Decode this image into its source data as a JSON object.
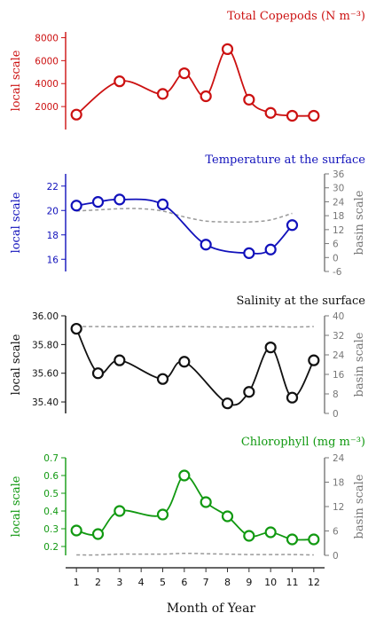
{
  "chart_data": [
    {
      "type": "line",
      "title": "Total Copepods (N m⁻³)",
      "color": "#cc1111",
      "ylabel": "local scale",
      "ylim": [
        0,
        8500
      ],
      "ticks": [
        2000,
        4000,
        6000,
        8000
      ],
      "tick_labels": [
        "2000",
        "4000",
        "6000",
        "8000"
      ],
      "x": [
        1,
        3,
        5,
        6,
        7,
        8,
        9,
        10,
        11,
        12
      ],
      "series": [
        {
          "values": [
            1300,
            4200,
            3100,
            4900,
            2900,
            7000,
            2600,
            1450,
            1200,
            1200
          ]
        }
      ]
    },
    {
      "type": "line",
      "title": "Temperature at the surface",
      "color": "#1111bb",
      "ylabel": "local scale",
      "ylim": [
        15,
        23
      ],
      "ticks": [
        16,
        18,
        20,
        22
      ],
      "tick_labels": [
        "16",
        "18",
        "20",
        "22"
      ],
      "x": [
        1,
        2,
        3,
        5,
        7,
        9,
        10,
        11
      ],
      "series": [
        {
          "values": [
            20.4,
            20.7,
            20.9,
            20.5,
            17.2,
            16.5,
            16.8,
            18.8
          ]
        }
      ],
      "secondary_axis": {
        "ylabel": "basin scale",
        "ylim": [
          -6,
          36
        ],
        "ticks": [
          -6,
          0,
          6,
          12,
          18,
          24,
          30,
          36
        ],
        "tick_labels": [
          "-6",
          "0",
          "6",
          "12",
          "18",
          "24",
          "30",
          "36"
        ],
        "x": [
          1,
          2,
          3,
          4,
          5,
          6,
          7,
          8,
          9,
          10,
          11
        ],
        "series": [
          {
            "values": [
              20,
              20.5,
              21,
              21,
              20,
              17.5,
              15.7,
              15.3,
              15.3,
              16.2,
              19
            ]
          }
        ]
      }
    },
    {
      "type": "line",
      "title": "Salinity at the surface",
      "color": "#111111",
      "ylabel": "local scale",
      "ylim": [
        35.32,
        36.0
      ],
      "ticks": [
        35.4,
        35.6,
        35.8,
        36.0
      ],
      "tick_labels": [
        "35.40",
        "35.60",
        "35.80",
        "36.00"
      ],
      "x": [
        1,
        2,
        3,
        5,
        6,
        8,
        9,
        10,
        11,
        12
      ],
      "series": [
        {
          "values": [
            35.91,
            35.6,
            35.69,
            35.56,
            35.68,
            35.39,
            35.47,
            35.78,
            35.43,
            35.69
          ]
        }
      ],
      "secondary_axis": {
        "ylabel": "basin scale",
        "ylim": [
          0,
          40
        ],
        "ticks": [
          0,
          8,
          16,
          24,
          32,
          40
        ],
        "tick_labels": [
          "0",
          "8",
          "16",
          "24",
          "32",
          "40"
        ],
        "x": [
          1,
          2,
          3,
          4,
          5,
          6,
          7,
          8,
          9,
          10,
          11,
          12
        ],
        "series": [
          {
            "values": [
              35.6,
              35.6,
              35.5,
              35.6,
              35.5,
              35.6,
              35.5,
              35.4,
              35.5,
              35.6,
              35.4,
              35.6
            ]
          }
        ]
      }
    },
    {
      "type": "line",
      "title": "Chlorophyll (mg m⁻³)",
      "color": "#119911",
      "ylabel": "local scale",
      "ylim": [
        0.15,
        0.7
      ],
      "ticks": [
        0.2,
        0.3,
        0.4,
        0.5,
        0.6,
        0.7
      ],
      "tick_labels": [
        "0.2",
        "0.3",
        "0.4",
        "0.5",
        "0.6",
        "0.7"
      ],
      "x": [
        1,
        2,
        3,
        5,
        6,
        7,
        8,
        9,
        10,
        11,
        12
      ],
      "series": [
        {
          "values": [
            0.29,
            0.27,
            0.4,
            0.38,
            0.6,
            0.45,
            0.37,
            0.26,
            0.28,
            0.24,
            0.24
          ]
        }
      ],
      "secondary_axis": {
        "ylabel": "basin scale",
        "ylim": [
          0,
          24
        ],
        "ticks": [
          0,
          6,
          12,
          18,
          24
        ],
        "tick_labels": [
          "0",
          "6",
          "12",
          "18",
          "24"
        ],
        "x": [
          1,
          2,
          3,
          4,
          5,
          6,
          7,
          8,
          9,
          10,
          11,
          12
        ],
        "series": [
          {
            "values": [
              0.1,
              0.1,
              0.3,
              0.3,
              0.3,
              0.5,
              0.4,
              0.3,
              0.2,
              0.2,
              0.2,
              0.1
            ]
          }
        ]
      }
    }
  ],
  "xaxis": {
    "xlabel": "Month of Year",
    "xlim": [
      0.5,
      12.5
    ],
    "ticks": [
      1,
      2,
      3,
      4,
      5,
      6,
      7,
      8,
      9,
      10,
      11,
      12
    ],
    "tick_labels": [
      "1",
      "2",
      "3",
      "4",
      "5",
      "6",
      "7",
      "8",
      "9",
      "10",
      "11",
      "12"
    ]
  },
  "style": {
    "basin_color": "#999999",
    "axis_color": "#333333",
    "secondary_axis_color": "#777777"
  }
}
